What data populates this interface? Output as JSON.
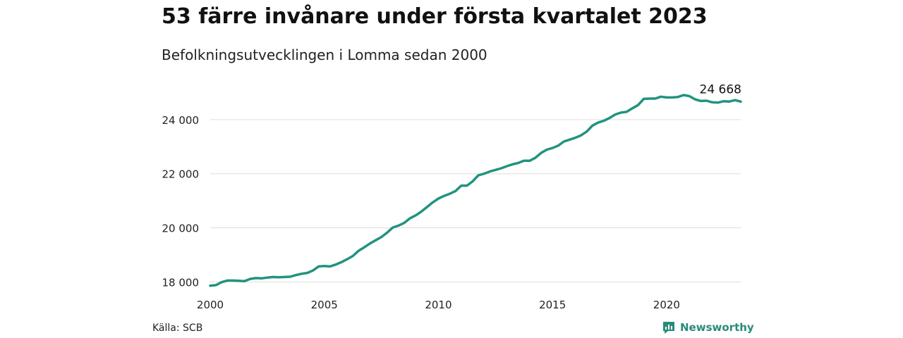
{
  "header": {
    "title": "53 färre invånare under första kvartalet 2023",
    "subtitle": "Befolkningsutvecklingen i Lomma sedan 2000"
  },
  "footer": {
    "source": "Källa: SCB",
    "brand": "Newsworthy"
  },
  "colors": {
    "line": "#21937f",
    "grid": "#dddddd",
    "brand": "#2a8a7a"
  },
  "icons": {
    "brand_logo": "bar-chart-speech-bubble-icon"
  },
  "chart_data": {
    "type": "line",
    "title": "53 färre invånare under första kvartalet 2023",
    "subtitle": "Befolkningsutvecklingen i Lomma sedan 2000",
    "xlabel": "",
    "ylabel": "",
    "xlim": [
      2000,
      2023.25
    ],
    "ylim": [
      17800,
      25300
    ],
    "x_ticks": [
      2000,
      2005,
      2010,
      2015,
      2020
    ],
    "x_tick_labels": [
      "2000",
      "2005",
      "2010",
      "2015",
      "2020"
    ],
    "y_ticks": [
      18000,
      20000,
      22000,
      24000
    ],
    "y_tick_labels": [
      "18 000",
      "20 000",
      "22 000",
      "24 000"
    ],
    "grid": "horizontal",
    "legend": "none",
    "end_label": "24 668",
    "series": [
      {
        "points": [
          [
            2000.0,
            17860
          ],
          [
            2000.25,
            17880
          ],
          [
            2000.5,
            17990
          ],
          [
            2000.75,
            18050
          ],
          [
            2001.0,
            18050
          ],
          [
            2001.25,
            18040
          ],
          [
            2001.5,
            18030
          ],
          [
            2001.75,
            18110
          ],
          [
            2002.0,
            18140
          ],
          [
            2002.25,
            18130
          ],
          [
            2002.5,
            18160
          ],
          [
            2002.75,
            18180
          ],
          [
            2003.0,
            18170
          ],
          [
            2003.25,
            18180
          ],
          [
            2003.5,
            18190
          ],
          [
            2003.75,
            18250
          ],
          [
            2004.0,
            18300
          ],
          [
            2004.25,
            18330
          ],
          [
            2004.5,
            18420
          ],
          [
            2004.75,
            18570
          ],
          [
            2005.0,
            18590
          ],
          [
            2005.25,
            18570
          ],
          [
            2005.5,
            18640
          ],
          [
            2005.75,
            18730
          ],
          [
            2006.0,
            18840
          ],
          [
            2006.25,
            18960
          ],
          [
            2006.5,
            19150
          ],
          [
            2006.75,
            19280
          ],
          [
            2007.0,
            19420
          ],
          [
            2007.25,
            19540
          ],
          [
            2007.5,
            19660
          ],
          [
            2007.75,
            19820
          ],
          [
            2008.0,
            20010
          ],
          [
            2008.25,
            20080
          ],
          [
            2008.5,
            20180
          ],
          [
            2008.75,
            20350
          ],
          [
            2009.0,
            20460
          ],
          [
            2009.25,
            20600
          ],
          [
            2009.5,
            20770
          ],
          [
            2009.75,
            20940
          ],
          [
            2010.0,
            21080
          ],
          [
            2010.25,
            21180
          ],
          [
            2010.5,
            21260
          ],
          [
            2010.75,
            21360
          ],
          [
            2011.0,
            21560
          ],
          [
            2011.25,
            21560
          ],
          [
            2011.5,
            21720
          ],
          [
            2011.75,
            21940
          ],
          [
            2012.0,
            22000
          ],
          [
            2012.25,
            22080
          ],
          [
            2012.5,
            22140
          ],
          [
            2012.75,
            22200
          ],
          [
            2013.0,
            22280
          ],
          [
            2013.25,
            22350
          ],
          [
            2013.5,
            22400
          ],
          [
            2013.75,
            22480
          ],
          [
            2014.0,
            22480
          ],
          [
            2014.25,
            22590
          ],
          [
            2014.5,
            22770
          ],
          [
            2014.75,
            22890
          ],
          [
            2015.0,
            22950
          ],
          [
            2015.25,
            23040
          ],
          [
            2015.5,
            23190
          ],
          [
            2015.75,
            23260
          ],
          [
            2016.0,
            23330
          ],
          [
            2016.25,
            23420
          ],
          [
            2016.5,
            23560
          ],
          [
            2016.75,
            23780
          ],
          [
            2017.0,
            23890
          ],
          [
            2017.25,
            23960
          ],
          [
            2017.5,
            24060
          ],
          [
            2017.75,
            24190
          ],
          [
            2018.0,
            24260
          ],
          [
            2018.25,
            24290
          ],
          [
            2018.5,
            24420
          ],
          [
            2018.75,
            24540
          ],
          [
            2019.0,
            24770
          ],
          [
            2019.25,
            24780
          ],
          [
            2019.5,
            24780
          ],
          [
            2019.75,
            24850
          ],
          [
            2020.0,
            24820
          ],
          [
            2020.25,
            24820
          ],
          [
            2020.5,
            24840
          ],
          [
            2020.75,
            24910
          ],
          [
            2021.0,
            24870
          ],
          [
            2021.25,
            24750
          ],
          [
            2021.5,
            24690
          ],
          [
            2021.75,
            24700
          ],
          [
            2022.0,
            24640
          ],
          [
            2022.25,
            24630
          ],
          [
            2022.5,
            24680
          ],
          [
            2022.75,
            24670
          ],
          [
            2023.0,
            24721
          ],
          [
            2023.25,
            24668
          ]
        ]
      }
    ]
  }
}
